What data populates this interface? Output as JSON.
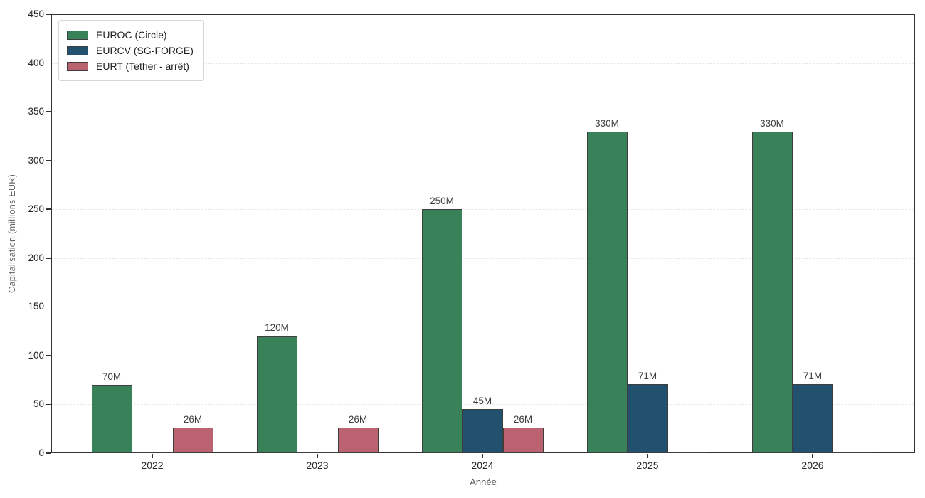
{
  "chart_data": {
    "type": "bar",
    "categories": [
      "2022",
      "2023",
      "2024",
      "2025",
      "2026"
    ],
    "series": [
      {
        "name": "EUROC (Circle)",
        "color": "#398159",
        "values": [
          70,
          120,
          250,
          330,
          330
        ],
        "labels": [
          "70M",
          "120M",
          "250M",
          "330M",
          "330M"
        ]
      },
      {
        "name": "EURCV (SG-FORGE)",
        "color": "#21516f",
        "values": [
          0,
          0,
          45,
          71,
          71
        ],
        "labels": [
          "",
          "",
          "45M",
          "71M",
          "71M"
        ]
      },
      {
        "name": "EURT (Tether - arrêt)",
        "color": "#ba626f",
        "values": [
          26,
          26,
          26,
          0,
          0
        ],
        "labels": [
          "26M",
          "26M",
          "26M",
          "",
          ""
        ]
      }
    ],
    "title": "",
    "xlabel": "Année",
    "ylabel": "Capitalisation (millions EUR)",
    "ylim": [
      0,
      450
    ],
    "yticks": [
      0,
      50,
      100,
      150,
      200,
      250,
      300,
      350,
      400,
      450
    ],
    "grid": "horizontal-dashed",
    "legend_position": "top-left",
    "colors": {
      "bar_edge": "#3d3d3d",
      "grid": "#e9e9e9",
      "spine": "#333333",
      "tick_label": "#262626",
      "axis_label": "#666666",
      "value_label": "#3f3f3f",
      "background": "#ffffff"
    }
  }
}
